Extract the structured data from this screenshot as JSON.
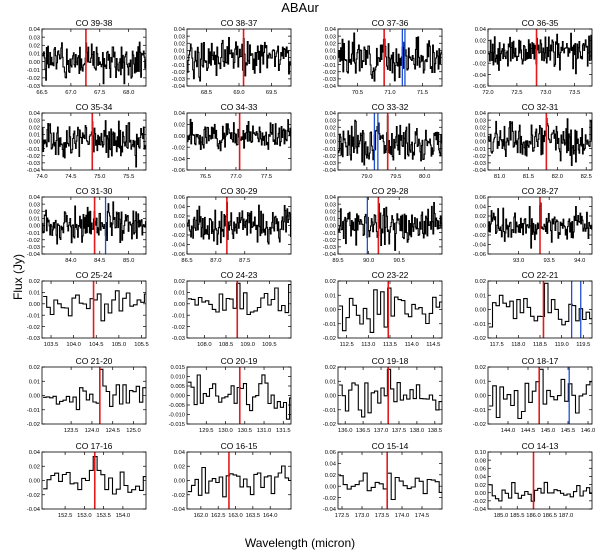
{
  "page": {
    "title": "ABAur",
    "xlabel": "Wavelength (micron)",
    "ylabel": "Flux (Jy)"
  },
  "colors": {
    "data": "#000000",
    "line_red": "#e41a1c",
    "line_blue": "#1f4fd6",
    "axes": "#000000"
  },
  "chart_data": [
    {
      "type": "line",
      "title": "CO 39-38",
      "xlim": [
        66.5,
        68.3
      ],
      "xticks": [
        "66.5",
        "67.0",
        "67.5",
        "68.0"
      ],
      "xtick_values": [
        66.5,
        67.0,
        67.5,
        68.0
      ],
      "ylim": [
        -0.03,
        0.04
      ],
      "yticks": [
        "-0.03",
        "-0.02",
        "-0.01",
        "0.00",
        "0.01",
        "0.02",
        "0.03",
        "0.04"
      ],
      "ytick_values": [
        -0.03,
        -0.02,
        -0.01,
        0.0,
        0.01,
        0.02,
        0.03,
        0.04
      ],
      "red_line": 67.26,
      "blue_lines": [],
      "noise": 0.015,
      "step": 0.012,
      "seed": 1
    },
    {
      "type": "line",
      "title": "CO 38-37",
      "xlim": [
        68.2,
        69.8
      ],
      "xticks": [
        "68.5",
        "69.0",
        "69.5"
      ],
      "xtick_values": [
        68.5,
        69.0,
        69.5
      ],
      "ylim": [
        -0.04,
        0.04
      ],
      "yticks": [
        "-0.04",
        "-0.03",
        "-0.02",
        "-0.01",
        "0.00",
        "0.01",
        "0.02",
        "0.03",
        "0.04"
      ],
      "ytick_values": [
        -0.04,
        -0.03,
        -0.02,
        -0.01,
        0.0,
        0.01,
        0.02,
        0.03,
        0.04
      ],
      "red_line": 69.07,
      "blue_lines": [],
      "noise": 0.016,
      "step": 0.012,
      "seed": 2
    },
    {
      "type": "line",
      "title": "CO 37-36",
      "xlim": [
        70.2,
        71.8
      ],
      "xticks": [
        "70.5",
        "71.0",
        "71.5"
      ],
      "xtick_values": [
        70.5,
        71.0,
        71.5
      ],
      "ylim": [
        -0.04,
        0.04
      ],
      "yticks": [
        "-0.04",
        "-0.03",
        "-0.02",
        "-0.01",
        "0.00",
        "0.01",
        "0.02",
        "0.03",
        "0.04"
      ],
      "ytick_values": [
        -0.04,
        -0.03,
        -0.02,
        -0.01,
        0.0,
        0.01,
        0.02,
        0.03,
        0.04
      ],
      "red_line": 70.91,
      "blue_lines": [
        71.19,
        71.23
      ],
      "noise": 0.016,
      "step": 0.012,
      "seed": 3
    },
    {
      "type": "line",
      "title": "CO 36-35",
      "xlim": [
        72.0,
        73.8
      ],
      "xticks": [
        "72.0",
        "72.5",
        "73.0",
        "73.5"
      ],
      "xtick_values": [
        72.0,
        72.5,
        73.0,
        73.5
      ],
      "ylim": [
        -0.06,
        0.04
      ],
      "yticks": [
        "-0.06",
        "-0.04",
        "-0.02",
        "0.00",
        "0.02",
        "0.04"
      ],
      "ytick_values": [
        -0.06,
        -0.04,
        -0.02,
        0.0,
        0.02,
        0.04
      ],
      "red_line": 72.84,
      "blue_lines": [],
      "noise": 0.018,
      "step": 0.012,
      "seed": 4
    },
    {
      "type": "line",
      "title": "CO 35-34",
      "xlim": [
        74.0,
        75.8
      ],
      "xticks": [
        "74.0",
        "74.5",
        "75.0",
        "75.5"
      ],
      "xtick_values": [
        74.0,
        74.5,
        75.0,
        75.5
      ],
      "ylim": [
        -0.04,
        0.04
      ],
      "yticks": [
        "-0.04",
        "-0.03",
        "-0.02",
        "-0.01",
        "0.00",
        "0.01",
        "0.02",
        "0.03",
        "0.04"
      ],
      "ytick_values": [
        -0.04,
        -0.03,
        -0.02,
        -0.01,
        0.0,
        0.01,
        0.02,
        0.03,
        0.04
      ],
      "red_line": 74.87,
      "blue_lines": [],
      "noise": 0.016,
      "step": 0.012,
      "seed": 5
    },
    {
      "type": "line",
      "title": "CO 34-33",
      "xlim": [
        76.2,
        77.9
      ],
      "xticks": [
        "76.5",
        "77.0",
        "77.5"
      ],
      "xtick_values": [
        76.5,
        77.0,
        77.5
      ],
      "ylim": [
        -0.06,
        0.04
      ],
      "yticks": [
        "-0.06",
        "-0.04",
        "-0.02",
        "0.00",
        "0.02",
        "0.04"
      ],
      "ytick_values": [
        -0.06,
        -0.04,
        -0.02,
        0.0,
        0.02,
        0.04
      ],
      "red_line": 77.06,
      "blue_lines": [],
      "noise": 0.015,
      "step": 0.012,
      "seed": 6
    },
    {
      "type": "line",
      "title": "CO 33-32",
      "xlim": [
        78.5,
        80.3
      ],
      "xticks": [
        "79.0",
        "79.5",
        "80.0"
      ],
      "xtick_values": [
        79.0,
        79.5,
        80.0
      ],
      "ylim": [
        -0.04,
        0.04
      ],
      "yticks": [
        "-0.04",
        "-0.03",
        "-0.02",
        "-0.01",
        "0.00",
        "0.01",
        "0.02",
        "0.03",
        "0.04"
      ],
      "ytick_values": [
        -0.04,
        -0.03,
        -0.02,
        -0.01,
        0.0,
        0.01,
        0.02,
        0.03,
        0.04
      ],
      "red_line": 79.36,
      "blue_lines": [
        79.13,
        79.19
      ],
      "noise": 0.017,
      "step": 0.012,
      "seed": 7
    },
    {
      "type": "line",
      "title": "CO 32-31",
      "xlim": [
        80.8,
        82.6
      ],
      "xticks": [
        "81.0",
        "81.5",
        "82.0",
        "82.5"
      ],
      "xtick_values": [
        81.0,
        81.5,
        82.0,
        82.5
      ],
      "ylim": [
        -0.04,
        0.04
      ],
      "yticks": [
        "-0.04",
        "-0.03",
        "-0.02",
        "-0.01",
        "0.00",
        "0.01",
        "0.02",
        "0.03",
        "0.04"
      ],
      "ytick_values": [
        -0.04,
        -0.03,
        -0.02,
        -0.01,
        0.0,
        0.01,
        0.02,
        0.03,
        0.04
      ],
      "red_line": 81.81,
      "blue_lines": [],
      "noise": 0.016,
      "step": 0.012,
      "seed": 8
    },
    {
      "type": "line",
      "title": "CO 31-30",
      "xlim": [
        83.5,
        85.3
      ],
      "xticks": [
        "84.0",
        "84.5",
        "85.0"
      ],
      "xtick_values": [
        84.0,
        84.5,
        85.0
      ],
      "ylim": [
        -0.04,
        0.04
      ],
      "yticks": [
        "-0.04",
        "-0.03",
        "-0.02",
        "-0.01",
        "0.00",
        "0.01",
        "0.02",
        "0.03",
        "0.04"
      ],
      "ytick_values": [
        -0.04,
        -0.03,
        -0.02,
        -0.01,
        0.0,
        0.01,
        0.02,
        0.03,
        0.04
      ],
      "red_line": 84.41,
      "blue_lines": [
        84.6
      ],
      "noise": 0.016,
      "step": 0.012,
      "seed": 9
    },
    {
      "type": "line",
      "title": "CO 30-29",
      "xlim": [
        86.5,
        88.3
      ],
      "xticks": [
        "86.5",
        "87.0",
        "87.5"
      ],
      "xtick_values": [
        86.5,
        87.0,
        87.5
      ],
      "ylim": [
        -0.06,
        0.06
      ],
      "yticks": [
        "-0.06",
        "-0.04",
        "-0.02",
        "0.00",
        "0.02",
        "0.04",
        "0.06"
      ],
      "ytick_values": [
        -0.06,
        -0.04,
        -0.02,
        0.0,
        0.02,
        0.04,
        0.06
      ],
      "red_line": 87.19,
      "blue_lines": [],
      "noise": 0.022,
      "step": 0.012,
      "seed": 10
    },
    {
      "type": "line",
      "title": "CO 29-28",
      "xlim": [
        89.5,
        91.2
      ],
      "xticks": [
        "89.5",
        "90.0",
        "90.5"
      ],
      "xtick_values": [
        89.5,
        90.0,
        90.5
      ],
      "ylim": [
        -0.04,
        0.04
      ],
      "yticks": [
        "-0.04",
        "-0.03",
        "-0.02",
        "-0.01",
        "0.00",
        "0.01",
        "0.02",
        "0.03",
        "0.04"
      ],
      "ytick_values": [
        -0.04,
        -0.03,
        -0.02,
        -0.01,
        0.0,
        0.01,
        0.02,
        0.03,
        0.04
      ],
      "red_line": 90.16,
      "blue_lines": [
        89.98
      ],
      "noise": 0.016,
      "step": 0.012,
      "seed": 11
    },
    {
      "type": "line",
      "title": "CO 28-27",
      "xlim": [
        92.5,
        94.2
      ],
      "xticks": [
        "93.0",
        "93.5",
        "94.0"
      ],
      "xtick_values": [
        93.0,
        93.5,
        94.0
      ],
      "ylim": [
        -0.06,
        0.06
      ],
      "yticks": [
        "-0.06",
        "-0.04",
        "-0.02",
        "0.00",
        "0.02",
        "0.04",
        "0.06"
      ],
      "ytick_values": [
        -0.06,
        -0.04,
        -0.02,
        0.0,
        0.02,
        0.04,
        0.06
      ],
      "red_line": 93.35,
      "blue_lines": [],
      "noise": 0.022,
      "step": 0.012,
      "seed": 12
    },
    {
      "type": "line",
      "title": "CO 25-24",
      "xlim": [
        103.3,
        105.6
      ],
      "xticks": [
        "103.5",
        "104.0",
        "104.5",
        "105.0",
        "105.5"
      ],
      "xtick_values": [
        103.5,
        104.0,
        104.5,
        105.0,
        105.5
      ],
      "ylim": [
        -0.03,
        0.02
      ],
      "yticks": [
        "-0.03",
        "-0.02",
        "-0.01",
        "0.00",
        "0.01",
        "0.02"
      ],
      "ytick_values": [
        -0.03,
        -0.02,
        -0.01,
        0.0,
        0.01,
        0.02
      ],
      "red_line": 104.44,
      "blue_lines": [],
      "noise": 0.008,
      "step": 0.08,
      "seed": 13
    },
    {
      "type": "line",
      "title": "CO 24-23",
      "xlim": [
        107.6,
        110.0
      ],
      "xticks": [
        "108.0",
        "108.5",
        "109.0",
        "109.5"
      ],
      "xtick_values": [
        108.0,
        108.5,
        109.0,
        109.5
      ],
      "ylim": [
        -0.03,
        0.02
      ],
      "yticks": [
        "-0.03",
        "-0.02",
        "-0.01",
        "0.00",
        "0.01",
        "0.02"
      ],
      "ytick_values": [
        -0.03,
        -0.02,
        -0.01,
        0.0,
        0.01,
        0.02
      ],
      "red_line": 108.76,
      "blue_lines": [],
      "noise": 0.008,
      "step": 0.08,
      "seed": 14
    },
    {
      "type": "line",
      "title": "CO 23-22",
      "xlim": [
        112.3,
        114.7
      ],
      "xticks": [
        "112.5",
        "113.0",
        "113.5",
        "114.0",
        "114.5"
      ],
      "xtick_values": [
        112.5,
        113.0,
        113.5,
        114.0,
        114.5
      ],
      "ylim": [
        -0.02,
        0.02
      ],
      "yticks": [
        "-0.02",
        "-0.01",
        "0.00",
        "0.01",
        "0.02"
      ],
      "ytick_values": [
        -0.02,
        -0.01,
        0.0,
        0.01,
        0.02
      ],
      "red_line": 113.46,
      "blue_lines": [],
      "noise": 0.008,
      "step": 0.08,
      "seed": 15
    },
    {
      "type": "line",
      "title": "CO 22-21",
      "xlim": [
        117.3,
        119.7
      ],
      "xticks": [
        "117.5",
        "118.0",
        "118.5",
        "119.0",
        "119.5"
      ],
      "xtick_values": [
        117.5,
        118.0,
        118.5,
        119.0,
        119.5
      ],
      "ylim": [
        -0.02,
        0.02
      ],
      "yticks": [
        "-0.02",
        "-0.01",
        "0.00",
        "0.01",
        "0.02"
      ],
      "ytick_values": [
        -0.02,
        -0.01,
        0.0,
        0.01,
        0.02
      ],
      "red_line": 118.58,
      "blue_lines": [
        119.23,
        119.44
      ],
      "noise": 0.008,
      "step": 0.08,
      "seed": 16
    },
    {
      "type": "line",
      "title": "CO 21-20",
      "xlim": [
        122.8,
        125.3
      ],
      "xticks": [
        "123.5",
        "124.0",
        "124.5",
        "125.0"
      ],
      "xtick_values": [
        123.5,
        124.0,
        124.5,
        125.0
      ],
      "ylim": [
        -0.02,
        0.02
      ],
      "yticks": [
        "-0.02",
        "-0.01",
        "0.00",
        "0.01",
        "0.02"
      ],
      "ytick_values": [
        -0.02,
        -0.01,
        0.0,
        0.01,
        0.02
      ],
      "red_line": 124.19,
      "blue_lines": [],
      "noise": 0.007,
      "step": 0.08,
      "seed": 17
    },
    {
      "type": "line",
      "title": "CO 20-19",
      "xlim": [
        129.0,
        131.7
      ],
      "xticks": [
        "129.5",
        "130.0",
        "130.5",
        "131.0",
        "131.5"
      ],
      "xtick_values": [
        129.5,
        130.0,
        130.5,
        131.0,
        131.5
      ],
      "ylim": [
        -0.015,
        0.015
      ],
      "yticks": [
        "-0.015",
        "-0.010",
        "-0.005",
        "0.000",
        "0.005",
        "0.010",
        "0.015"
      ],
      "ytick_values": [
        -0.015,
        -0.01,
        -0.005,
        0.0,
        0.005,
        0.01,
        0.015
      ],
      "red_line": 130.37,
      "blue_lines": [],
      "noise": 0.006,
      "step": 0.08,
      "seed": 18
    },
    {
      "type": "line",
      "title": "CO 19-18",
      "xlim": [
        135.8,
        138.7
      ],
      "xticks": [
        "136.0",
        "136.5",
        "137.0",
        "137.5",
        "138.0",
        "138.5"
      ],
      "xtick_values": [
        136.0,
        136.5,
        137.0,
        137.5,
        138.0,
        138.5
      ],
      "ylim": [
        -0.02,
        0.02
      ],
      "yticks": [
        "-0.02",
        "-0.01",
        "0.00",
        "0.01",
        "0.02"
      ],
      "ytick_values": [
        -0.02,
        -0.01,
        0.0,
        0.01,
        0.02
      ],
      "red_line": 137.2,
      "blue_lines": [],
      "noise": 0.008,
      "step": 0.09,
      "seed": 19
    },
    {
      "type": "line",
      "title": "CO 18-17",
      "xlim": [
        143.5,
        146.1
      ],
      "xticks": [
        "144.0",
        "144.5",
        "145.0",
        "145.5",
        "146.0"
      ],
      "xtick_values": [
        144.0,
        144.5,
        145.0,
        145.5,
        146.0
      ],
      "ylim": [
        -0.02,
        0.02
      ],
      "yticks": [
        "-0.02",
        "-0.01",
        "0.00",
        "0.01",
        "0.02"
      ],
      "ytick_values": [
        -0.02,
        -0.01,
        0.0,
        0.01,
        0.02
      ],
      "red_line": 144.78,
      "blue_lines": [
        145.53
      ],
      "noise": 0.008,
      "step": 0.09,
      "seed": 20
    },
    {
      "type": "line",
      "title": "CO 17-16",
      "xlim": [
        151.9,
        154.6
      ],
      "xticks": [
        "152.5",
        "153.0",
        "153.5",
        "154.0"
      ],
      "xtick_values": [
        152.5,
        153.0,
        153.5,
        154.0
      ],
      "ylim": [
        -0.04,
        0.04
      ],
      "yticks": [
        "-0.04",
        "-0.02",
        "0.00",
        "0.02",
        "0.04"
      ],
      "ytick_values": [
        -0.04,
        -0.02,
        0.0,
        0.02,
        0.04
      ],
      "red_line": 153.27,
      "blue_lines": [],
      "noise": 0.01,
      "step": 0.1,
      "seed": 21
    },
    {
      "type": "line",
      "title": "CO 16-15",
      "xlim": [
        161.6,
        164.6
      ],
      "xticks": [
        "162.0",
        "162.5",
        "163.0",
        "163.5",
        "164.0"
      ],
      "xtick_values": [
        162.0,
        162.5,
        163.0,
        163.5,
        164.0
      ],
      "ylim": [
        -0.04,
        0.04
      ],
      "yticks": [
        "-0.04",
        "-0.02",
        "0.00",
        "0.02",
        "0.04"
      ],
      "ytick_values": [
        -0.04,
        -0.02,
        0.0,
        0.02,
        0.04
      ],
      "red_line": 162.81,
      "blue_lines": [],
      "noise": 0.011,
      "step": 0.1,
      "seed": 22
    },
    {
      "type": "line",
      "title": "CO 15-14",
      "xlim": [
        172.4,
        175.0
      ],
      "xticks": [
        "172.5",
        "173.0",
        "173.5",
        "174.0",
        "174.5"
      ],
      "xtick_values": [
        172.5,
        173.0,
        173.5,
        174.0,
        174.5
      ],
      "ylim": [
        -0.04,
        0.06
      ],
      "yticks": [
        "-0.04",
        "-0.02",
        "0.00",
        "0.02",
        "0.04",
        "0.06"
      ],
      "ytick_values": [
        -0.04,
        -0.02,
        0.0,
        0.02,
        0.04,
        0.06
      ],
      "red_line": 173.63,
      "blue_lines": [],
      "noise": 0.012,
      "step": 0.1,
      "seed": 23
    },
    {
      "type": "line",
      "title": "CO 14-13",
      "xlim": [
        184.6,
        187.8
      ],
      "xticks": [
        "185.0",
        "185.5",
        "186.0",
        "186.5",
        "187.0"
      ],
      "xtick_values": [
        185.0,
        185.5,
        186.0,
        186.5,
        187.0
      ],
      "ylim": [
        -0.04,
        0.1
      ],
      "yticks": [
        "-0.04",
        "-0.02",
        "0.00",
        "0.02",
        "0.04",
        "0.06",
        "0.08",
        "0.10"
      ],
      "ytick_values": [
        -0.04,
        -0.02,
        0.0,
        0.02,
        0.04,
        0.06,
        0.08,
        0.1
      ],
      "red_line": 186.0,
      "blue_lines": [],
      "noise": 0.015,
      "step": 0.1,
      "seed": 24
    }
  ]
}
